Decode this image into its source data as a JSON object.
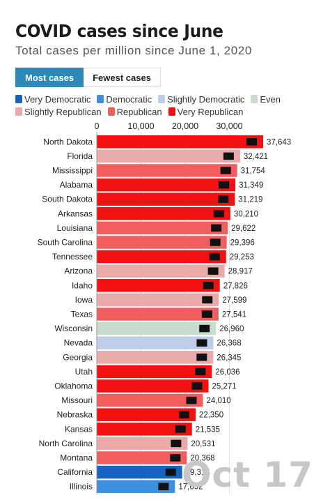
{
  "header": {
    "title": "COVID cases since June",
    "subtitle": "Total cases per million since June 1, 2020"
  },
  "toggle": {
    "most_label": "Most cases",
    "fewest_label": "Fewest cases",
    "active": "most"
  },
  "legend": [
    {
      "label": "Very Democratic",
      "color": "#1565c0"
    },
    {
      "label": "Democratic",
      "color": "#3d8fe0"
    },
    {
      "label": "Slightly Democratic",
      "color": "#bccdea"
    },
    {
      "label": "Even",
      "color": "#c8dccb"
    },
    {
      "label": "Slightly Republican",
      "color": "#ebaaaa"
    },
    {
      "label": "Republican",
      "color": "#f25e5e"
    },
    {
      "label": "Very Republican",
      "color": "#f21010"
    }
  ],
  "watermark": "Oct 17",
  "chart_data": {
    "type": "bar",
    "orientation": "horizontal",
    "title": "COVID cases since June",
    "subtitle": "Total cases per million since June 1, 2020",
    "x_ticks": [
      "0",
      "10,000",
      "20,000",
      "30,000"
    ],
    "xlim": [
      0,
      40000
    ],
    "grid": true,
    "categories": [
      "North Dakota",
      "Florida",
      "Mississippi",
      "Alabama",
      "South Dakota",
      "Arkansas",
      "Louisiana",
      "South Carolina",
      "Tennessee",
      "Arizona",
      "Idaho",
      "Iowa",
      "Texas",
      "Wisconsin",
      "Nevada",
      "Georgia",
      "Utah",
      "Oklahoma",
      "Missouri",
      "Nebraska",
      "Kansas",
      "North Carolina",
      "Montana",
      "California",
      "Illinois"
    ],
    "values": [
      37643,
      32421,
      31754,
      31349,
      31219,
      30210,
      29622,
      29396,
      29253,
      28917,
      27826,
      27599,
      27541,
      26960,
      26368,
      26345,
      26036,
      25271,
      24010,
      22350,
      21535,
      20531,
      20368,
      19314,
      17692
    ],
    "value_labels": [
      "37,643",
      "32,421",
      "31,754",
      "31,349",
      "31,219",
      "30,210",
      "29,622",
      "29,396",
      "29,253",
      "28,917",
      "27,826",
      "27,599",
      "27,541",
      "26,960",
      "26,368",
      "26,345",
      "26,036",
      "25,271",
      "24,010",
      "22,350",
      "21,535",
      "20,531",
      "20,368",
      "19,314",
      "17,692"
    ],
    "partisanship": [
      "Very Republican",
      "Slightly Republican",
      "Republican",
      "Very Republican",
      "Very Republican",
      "Very Republican",
      "Republican",
      "Republican",
      "Very Republican",
      "Slightly Republican",
      "Very Republican",
      "Slightly Republican",
      "Republican",
      "Even",
      "Slightly Democratic",
      "Slightly Republican",
      "Very Republican",
      "Very Republican",
      "Republican",
      "Very Republican",
      "Very Republican",
      "Slightly Republican",
      "Republican",
      "Very Democratic",
      "Democratic"
    ]
  }
}
